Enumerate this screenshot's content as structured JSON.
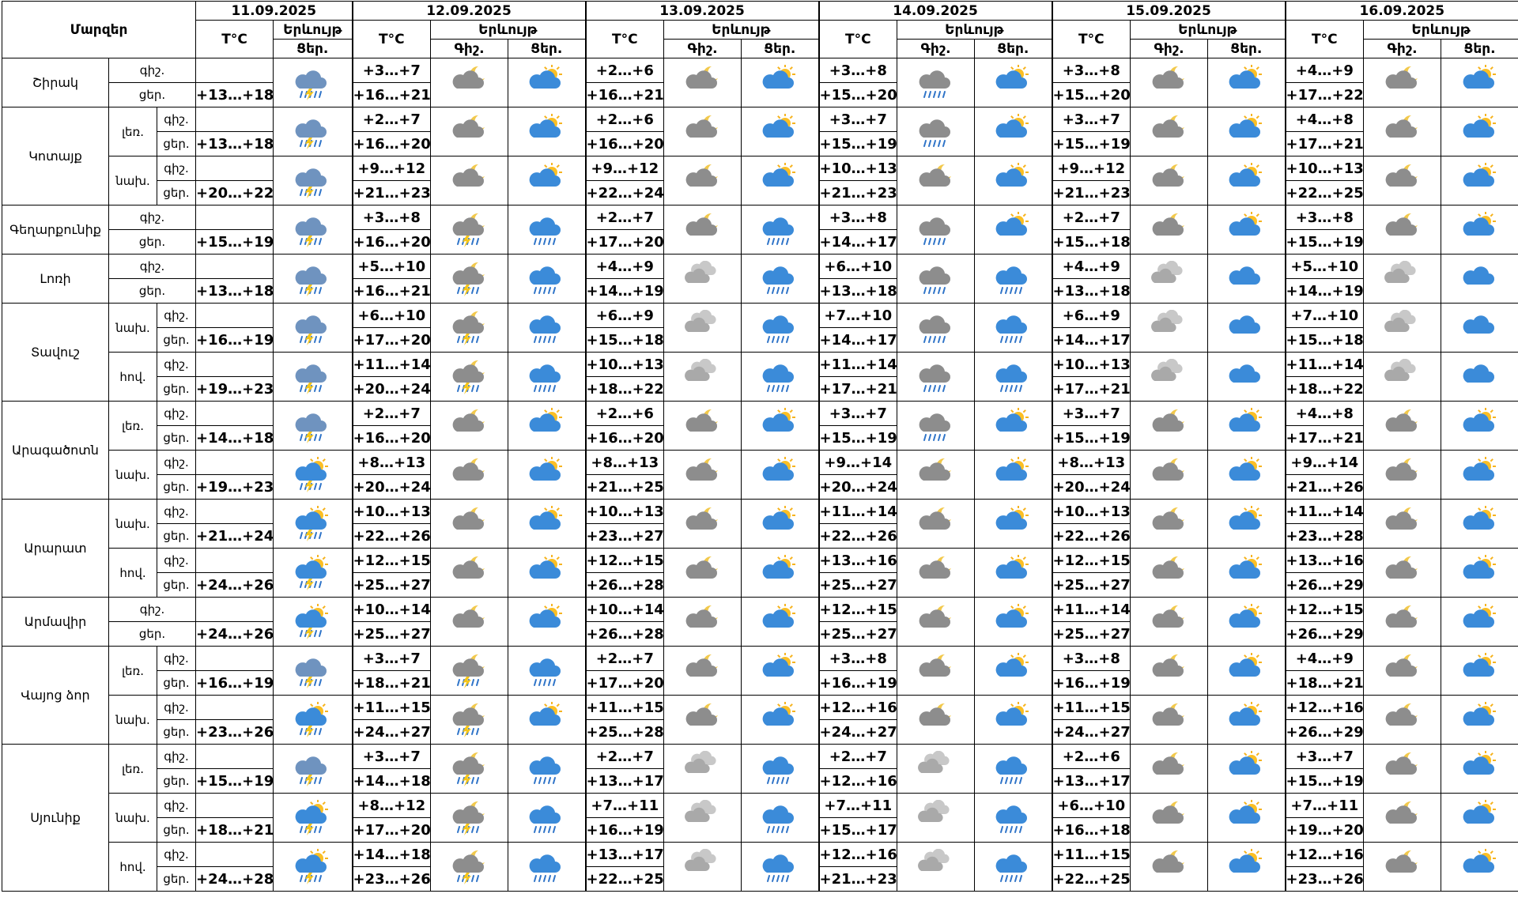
{
  "header": {
    "region": "Մարզեր",
    "temperature": "T°C",
    "phenomenon": "Երևույթ",
    "night": "Գիշ.",
    "day": "Ցեր."
  },
  "dates": [
    "11.09.2025",
    "12.09.2025",
    "13.09.2025",
    "14.09.2025",
    "15.09.2025",
    "16.09.2025"
  ],
  "row_labels": {
    "night": "գիշ.",
    "day": "ցեր."
  },
  "regions": [
    {
      "name": "Շիրակ",
      "zones": [
        {
          "first_day": "+13…+18",
          "forecast": [
            {
              "night": "+3…+7",
              "day": "+16…+21"
            },
            {
              "night": "+2…+6",
              "day": "+16…+21"
            },
            {
              "night": "+3…+8",
              "day": "+15…+20"
            },
            {
              "night": "+3…+8",
              "day": "+15…+20"
            },
            {
              "night": "+4…+9",
              "day": "+17…+22"
            }
          ]
        }
      ]
    },
    {
      "name": "Կոտայք",
      "zones": [
        {
          "name": "լեռ.",
          "first_day": "+13…+18",
          "forecast": [
            {
              "night": "+2…+7",
              "day": "+16…+20"
            },
            {
              "night": "+2…+6",
              "day": "+16…+20"
            },
            {
              "night": "+3…+7",
              "day": "+15…+19"
            },
            {
              "night": "+3…+7",
              "day": "+15…+19"
            },
            {
              "night": "+4…+8",
              "day": "+17…+21"
            }
          ]
        },
        {
          "name": "նախ.",
          "first_day": "+20…+22",
          "forecast": [
            {
              "night": "+9…+12",
              "day": "+21…+23"
            },
            {
              "night": "+9…+12",
              "day": "+22…+24"
            },
            {
              "night": "+10…+13",
              "day": "+21…+23"
            },
            {
              "night": "+9…+12",
              "day": "+21…+23"
            },
            {
              "night": "+10…+13",
              "day": "+22…+25"
            }
          ]
        }
      ]
    },
    {
      "name": "Գեղարքունիք",
      "zones": [
        {
          "first_day": "+15…+19",
          "forecast": [
            {
              "night": "+3…+8",
              "day": "+16…+20"
            },
            {
              "night": "+2…+7",
              "day": "+17…+20"
            },
            {
              "night": "+3…+8",
              "day": "+14…+17"
            },
            {
              "night": "+2…+7",
              "day": "+15…+18"
            },
            {
              "night": "+3…+8",
              "day": "+15…+19"
            }
          ]
        }
      ]
    },
    {
      "name": "Լոռի",
      "zones": [
        {
          "first_day": "+13…+18",
          "forecast": [
            {
              "night": "+5…+10",
              "day": "+16…+21"
            },
            {
              "night": "+4…+9",
              "day": "+14…+19"
            },
            {
              "night": "+6…+10",
              "day": "+13…+18"
            },
            {
              "night": "+4…+9",
              "day": "+13…+18"
            },
            {
              "night": "+5…+10",
              "day": "+14…+19"
            }
          ]
        }
      ]
    },
    {
      "name": "Տավուշ",
      "zones": [
        {
          "name": "նախ.",
          "first_day": "+16…+19",
          "forecast": [
            {
              "night": "+6…+10",
              "day": "+17…+20"
            },
            {
              "night": "+6…+9",
              "day": "+15…+18"
            },
            {
              "night": "+7…+10",
              "day": "+14…+17"
            },
            {
              "night": "+6…+9",
              "day": "+14…+17"
            },
            {
              "night": "+7…+10",
              "day": "+15…+18"
            }
          ]
        },
        {
          "name": "հով.",
          "first_day": "+19…+23",
          "forecast": [
            {
              "night": "+11…+14",
              "day": "+20…+24"
            },
            {
              "night": "+10…+13",
              "day": "+18…+22"
            },
            {
              "night": "+11…+14",
              "day": "+17…+21"
            },
            {
              "night": "+10…+13",
              "day": "+17…+21"
            },
            {
              "night": "+11…+14",
              "day": "+18…+22"
            }
          ]
        }
      ]
    },
    {
      "name": "Արագածոտն",
      "zones": [
        {
          "name": "լեռ.",
          "first_day": "+14…+18",
          "forecast": [
            {
              "night": "+2…+7",
              "day": "+16…+20"
            },
            {
              "night": "+2…+6",
              "day": "+16…+20"
            },
            {
              "night": "+3…+7",
              "day": "+15…+19"
            },
            {
              "night": "+3…+7",
              "day": "+15…+19"
            },
            {
              "night": "+4…+8",
              "day": "+17…+21"
            }
          ]
        },
        {
          "name": "նախ.",
          "first_day": "+19…+23",
          "forecast": [
            {
              "night": "+8…+13",
              "day": "+20…+24"
            },
            {
              "night": "+8…+13",
              "day": "+21…+25"
            },
            {
              "night": "+9…+14",
              "day": "+20…+24"
            },
            {
              "night": "+8…+13",
              "day": "+20…+24"
            },
            {
              "night": "+9…+14",
              "day": "+21…+26"
            }
          ]
        }
      ]
    },
    {
      "name": "Արարատ",
      "zones": [
        {
          "name": "նախ.",
          "first_day": "+21…+24",
          "forecast": [
            {
              "night": "+10…+13",
              "day": "+22…+26"
            },
            {
              "night": "+10…+13",
              "day": "+23…+27"
            },
            {
              "night": "+11…+14",
              "day": "+22…+26"
            },
            {
              "night": "+10…+13",
              "day": "+22…+26"
            },
            {
              "night": "+11…+14",
              "day": "+23…+28"
            }
          ]
        },
        {
          "name": "հով.",
          "first_day": "+24…+26",
          "forecast": [
            {
              "night": "+12…+15",
              "day": "+25…+27"
            },
            {
              "night": "+12…+15",
              "day": "+26…+28"
            },
            {
              "night": "+13…+16",
              "day": "+25…+27"
            },
            {
              "night": "+12…+15",
              "day": "+25…+27"
            },
            {
              "night": "+13…+16",
              "day": "+26…+29"
            }
          ]
        }
      ]
    },
    {
      "name": "Արմավիր",
      "zones": [
        {
          "first_day": "+24…+26",
          "forecast": [
            {
              "night": "+10…+14",
              "day": "+25…+27"
            },
            {
              "night": "+10…+14",
              "day": "+26…+28"
            },
            {
              "night": "+12…+15",
              "day": "+25…+27"
            },
            {
              "night": "+11…+14",
              "day": "+25…+27"
            },
            {
              "night": "+12…+15",
              "day": "+26…+29"
            }
          ]
        }
      ]
    },
    {
      "name": "Վայոց ձոր",
      "zones": [
        {
          "name": "լեռ.",
          "first_day": "+16…+19",
          "forecast": [
            {
              "night": "+3…+7",
              "day": "+18…+21"
            },
            {
              "night": "+2…+7",
              "day": "+17…+20"
            },
            {
              "night": "+3…+8",
              "day": "+16…+19"
            },
            {
              "night": "+3…+8",
              "day": "+16…+19"
            },
            {
              "night": "+4…+9",
              "day": "+18…+21"
            }
          ]
        },
        {
          "name": "նախ.",
          "first_day": "+23…+26",
          "forecast": [
            {
              "night": "+11…+15",
              "day": "+24…+27"
            },
            {
              "night": "+11…+15",
              "day": "+25…+28"
            },
            {
              "night": "+12…+16",
              "day": "+24…+27"
            },
            {
              "night": "+11…+15",
              "day": "+24…+27"
            },
            {
              "night": "+12…+16",
              "day": "+26…+29"
            }
          ]
        }
      ]
    },
    {
      "name": "Սյունիք",
      "zones": [
        {
          "name": "լեռ.",
          "first_day": "+15…+19",
          "forecast": [
            {
              "night": "+3…+7",
              "day": "+14…+18"
            },
            {
              "night": "+2…+7",
              "day": "+13…+17"
            },
            {
              "night": "+2…+7",
              "day": "+12…+16"
            },
            {
              "night": "+2…+6",
              "day": "+13…+17"
            },
            {
              "night": "+3…+7",
              "day": "+15…+19"
            }
          ]
        },
        {
          "name": "նախ.",
          "first_day": "+18…+21",
          "forecast": [
            {
              "night": "+8…+12",
              "day": "+17…+20"
            },
            {
              "night": "+7…+11",
              "day": "+16…+19"
            },
            {
              "night": "+7…+11",
              "day": "+15…+17"
            },
            {
              "night": "+6…+10",
              "day": "+16…+18"
            },
            {
              "night": "+7…+11",
              "day": "+19…+20"
            }
          ]
        },
        {
          "name": "հով.",
          "first_day": "+24…+28",
          "forecast": [
            {
              "night": "+14…+18",
              "day": "+23…+26"
            },
            {
              "night": "+13…+17",
              "day": "+22…+25"
            },
            {
              "night": "+12…+16",
              "day": "+21…+23"
            },
            {
              "night": "+11…+15",
              "day": "+22…+25"
            },
            {
              "night": "+12…+16",
              "day": "+23…+26"
            }
          ]
        }
      ]
    }
  ]
}
